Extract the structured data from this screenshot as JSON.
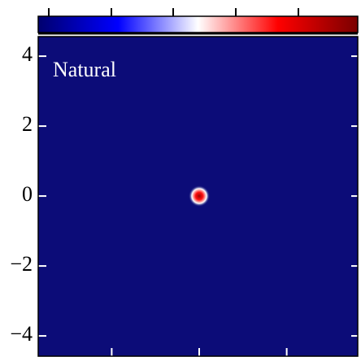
{
  "chart_data": {
    "type": "heatmap",
    "annotation": "Natural",
    "xlim": [
      -4.6,
      4.53
    ],
    "ylim": [
      -4.58,
      4.56
    ],
    "xticks": [
      -2.5,
      0,
      2.5
    ],
    "yticks": [
      4,
      2,
      0,
      {
        "value": -2,
        "label": "−2"
      },
      {
        "value": -4,
        "label": "−4"
      }
    ],
    "background_color": "#0c0c78",
    "colormap": [
      "#00006e",
      "#0000ff",
      "#ffffff",
      "#ff0000",
      "#7a0000"
    ],
    "peak_x": 0,
    "peak_y": 0
  }
}
